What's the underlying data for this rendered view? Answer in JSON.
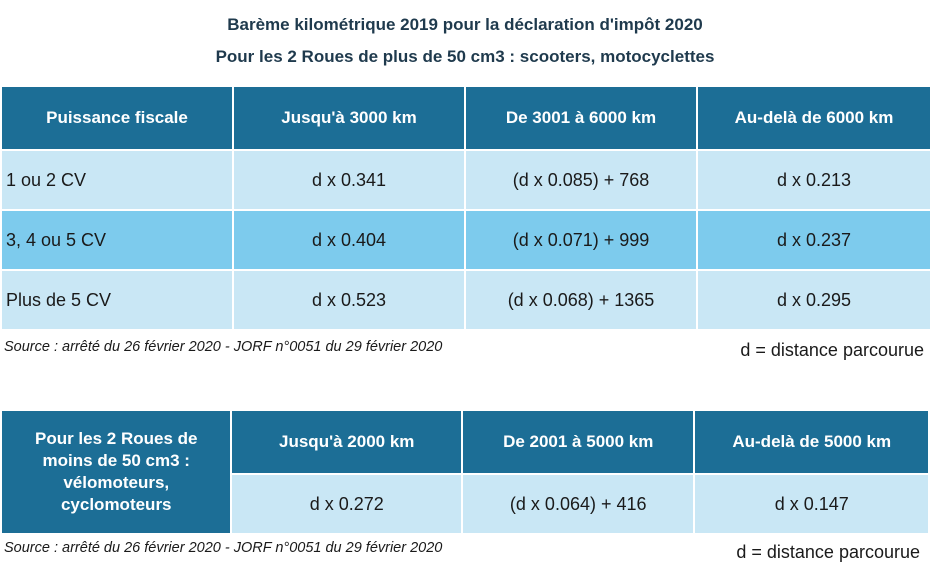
{
  "title_line1": "Barème kilométrique 2019 pour la déclaration d'impôt 2020",
  "title_line2": "Pour les 2 Roues de plus de 50 cm3 : scooters, motocyclettes",
  "table1": {
    "headers": [
      "Puissance fiscale",
      "Jusqu'à 3000 km",
      "De 3001 à 6000 km",
      "Au-delà de 6000 km"
    ],
    "rows": [
      [
        "1 ou 2 CV",
        "d x 0.341",
        "(d x 0.085) + 768",
        "d x 0.213"
      ],
      [
        "3, 4 ou 5 CV",
        "d x 0.404",
        "(d x 0.071) + 999",
        "d x 0.237"
      ],
      [
        "Plus de 5 CV",
        "d x 0.523",
        "(d x 0.068) + 1365",
        "d x 0.295"
      ]
    ]
  },
  "source1": "Source : arrêté du 26 février 2020 - JORF n°0051 du 29 février 2020",
  "dnote1": "d = distance parcourue",
  "table2": {
    "corner_lines": [
      "Pour les 2 Roues de",
      "moins de 50 cm3 :",
      "vélomoteurs,",
      "cyclomoteurs"
    ],
    "headers": [
      "Jusqu'à 2000 km",
      "De 2001 à 5000 km",
      "Au-delà de 5000 km"
    ],
    "row": [
      "d x 0.272",
      "(d x 0.064) + 416",
      "d x 0.147"
    ]
  },
  "source2": "Source : arrêté du 26 février 2020 - JORF n°0051 du 29 février 2020",
  "dnote2": "d = distance parcourue"
}
